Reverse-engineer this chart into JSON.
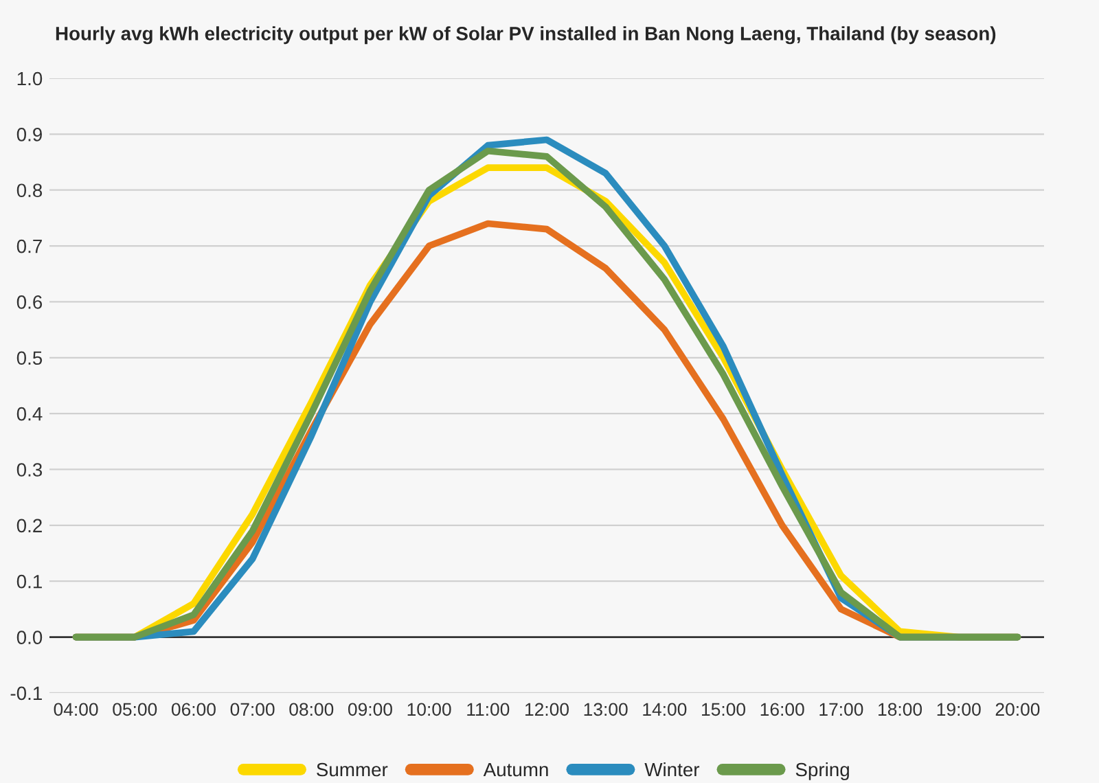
{
  "chart_data": {
    "type": "line",
    "title": "Hourly avg kWh electricity output per kW of Solar PV installed in Ban Nong Laeng, Thailand (by season)",
    "x": [
      4,
      5,
      6,
      7,
      8,
      9,
      10,
      11,
      12,
      13,
      14,
      15,
      16,
      17,
      18,
      19,
      20
    ],
    "series": [
      {
        "name": "Summer",
        "color": "#fcd800",
        "values": [
          0,
          0,
          0.06,
          0.22,
          0.42,
          0.63,
          0.78,
          0.84,
          0.84,
          0.78,
          0.67,
          0.5,
          0.3,
          0.11,
          0.01,
          0,
          0
        ]
      },
      {
        "name": "Autumn",
        "color": "#e5701f",
        "values": [
          0,
          0,
          0.03,
          0.17,
          0.37,
          0.56,
          0.7,
          0.74,
          0.73,
          0.66,
          0.55,
          0.39,
          0.2,
          0.05,
          0,
          0,
          0
        ]
      },
      {
        "name": "Winter",
        "color": "#2b8cbe",
        "values": [
          0,
          0,
          0.01,
          0.14,
          0.36,
          0.6,
          0.79,
          0.88,
          0.89,
          0.83,
          0.7,
          0.52,
          0.29,
          0.07,
          0,
          0,
          0
        ]
      },
      {
        "name": "Spring",
        "color": "#6b9a4c",
        "values": [
          0,
          0,
          0.04,
          0.19,
          0.4,
          0.62,
          0.8,
          0.87,
          0.86,
          0.77,
          0.64,
          0.47,
          0.27,
          0.08,
          0,
          0,
          0
        ]
      }
    ],
    "xlim": [
      3.55,
      20.45
    ],
    "xticks": [
      {
        "value": 4,
        "label": "04:00"
      },
      {
        "value": 5,
        "label": "05:00"
      },
      {
        "value": 6,
        "label": "06:00"
      },
      {
        "value": 7,
        "label": "07:00"
      },
      {
        "value": 8,
        "label": "08:00"
      },
      {
        "value": 9,
        "label": "09:00"
      },
      {
        "value": 10,
        "label": "10:00"
      },
      {
        "value": 11,
        "label": "11:00"
      },
      {
        "value": 12,
        "label": "12:00"
      },
      {
        "value": 13,
        "label": "13:00"
      },
      {
        "value": 14,
        "label": "14:00"
      },
      {
        "value": 15,
        "label": "15:00"
      },
      {
        "value": 16,
        "label": "16:00"
      },
      {
        "value": 17,
        "label": "17:00"
      },
      {
        "value": 18,
        "label": "18:00"
      },
      {
        "value": 19,
        "label": "19:00"
      },
      {
        "value": 20,
        "label": "20:00"
      }
    ],
    "ylim": [
      -0.1,
      1.0
    ],
    "yticks": [
      {
        "value": -0.1,
        "label": "-0.1"
      },
      {
        "value": 0,
        "label": "0.0"
      },
      {
        "value": 0.1,
        "label": "0.1"
      },
      {
        "value": 0.2,
        "label": "0.2"
      },
      {
        "value": 0.3,
        "label": "0.3"
      },
      {
        "value": 0.4,
        "label": "0.4"
      },
      {
        "value": 0.5,
        "label": "0.5"
      },
      {
        "value": 0.6,
        "label": "0.6"
      },
      {
        "value": 0.7,
        "label": "0.7"
      },
      {
        "value": 0.8,
        "label": "0.8"
      },
      {
        "value": 0.9,
        "label": "0.9"
      },
      {
        "value": 1.0,
        "label": "1.0"
      }
    ],
    "ref_lines": [
      {
        "axis": "y",
        "value": 0,
        "label": null,
        "color": "#333333"
      }
    ],
    "grid": "y",
    "legend": "bottom",
    "marker": "none",
    "line_style": "solid"
  }
}
